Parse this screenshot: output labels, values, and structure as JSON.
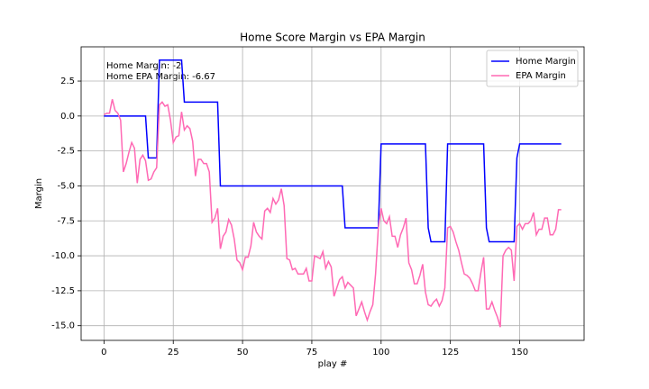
{
  "chart_data": {
    "type": "line",
    "title": "Home Score Margin vs EPA Margin",
    "x_label": "play #",
    "y_label": "Margin",
    "annotations": [
      "Home Margin: -2",
      "Home EPA Margin: -6.67"
    ],
    "xlim": [
      -8.25,
      173.25
    ],
    "xticks": [
      0,
      25,
      50,
      75,
      100,
      125,
      150
    ],
    "ylim": [
      -16.05,
      4.95
    ],
    "yticks": [
      2.5,
      {
        "value": 0,
        "label": "0.0"
      },
      -2.5,
      {
        "value": -5,
        "label": "-5.0"
      },
      -7.5,
      {
        "value": -10,
        "label": "-10.0"
      },
      -12.5,
      {
        "value": -15,
        "label": "-15.0"
      }
    ],
    "grid": true,
    "legend": "upper right",
    "series": [
      {
        "name": "Home Margin",
        "color": "#0000ff",
        "x": [
          0,
          15,
          16,
          19,
          20,
          28,
          29,
          41,
          42,
          86,
          87,
          99,
          100,
          116,
          117,
          118,
          123,
          124,
          137,
          138,
          139,
          148,
          149,
          150,
          165
        ],
        "values": [
          0,
          0,
          -3,
          -3,
          4,
          4,
          1,
          1,
          -5,
          -5,
          -8,
          -8,
          -2,
          -2,
          -8,
          -9,
          -9,
          -2,
          -2,
          -8,
          -9,
          -9,
          -3,
          -2,
          -2
        ]
      },
      {
        "name": "EPA Margin",
        "color": "#ff69b4",
        "x": [
          0,
          1,
          2,
          3,
          4,
          5,
          6,
          7,
          8,
          9,
          10,
          11,
          12,
          13,
          14,
          15,
          16,
          17,
          18,
          19,
          20,
          21,
          22,
          23,
          24,
          25,
          26,
          27,
          28,
          29,
          30,
          31,
          32,
          33,
          34,
          35,
          36,
          37,
          38,
          39,
          40,
          41,
          42,
          43,
          44,
          45,
          46,
          47,
          48,
          49,
          50,
          51,
          52,
          53,
          54,
          55,
          56,
          57,
          58,
          59,
          60,
          61,
          62,
          63,
          64,
          65,
          66,
          67,
          68,
          69,
          70,
          71,
          72,
          73,
          74,
          75,
          76,
          77,
          78,
          79,
          80,
          81,
          82,
          83,
          84,
          85,
          86,
          87,
          88,
          89,
          90,
          91,
          92,
          93,
          94,
          95,
          96,
          97,
          98,
          99,
          100,
          101,
          102,
          103,
          104,
          105,
          106,
          107,
          108,
          109,
          110,
          111,
          112,
          113,
          114,
          115,
          116,
          117,
          118,
          119,
          120,
          121,
          122,
          123,
          124,
          125,
          126,
          127,
          128,
          129,
          130,
          131,
          132,
          133,
          134,
          135,
          136,
          137,
          138,
          139,
          140,
          141,
          142,
          143,
          144,
          145,
          146,
          147,
          148,
          149,
          150,
          151,
          152,
          153,
          154,
          155,
          156,
          157,
          158,
          159,
          160,
          161,
          162,
          163,
          164,
          165
        ],
        "values": [
          0.1,
          0.2,
          0.2,
          1.2,
          0.4,
          0.2,
          -0.3,
          -4.0,
          -3.4,
          -2.6,
          -1.9,
          -2.3,
          -4.8,
          -3.1,
          -2.8,
          -3.2,
          -4.6,
          -4.5,
          -4.0,
          -3.7,
          0.8,
          1.0,
          0.7,
          0.8,
          -0.3,
          -1.9,
          -1.5,
          -1.4,
          0.3,
          -1.0,
          -0.7,
          -0.9,
          -1.8,
          -4.3,
          -3.1,
          -3.1,
          -3.4,
          -3.4,
          -4.0,
          -7.6,
          -7.3,
          -6.6,
          -9.5,
          -8.6,
          -8.3,
          -7.4,
          -7.8,
          -8.8,
          -10.3,
          -10.5,
          -11.0,
          -10.1,
          -10.1,
          -9.3,
          -7.6,
          -8.3,
          -8.6,
          -8.8,
          -6.8,
          -6.6,
          -6.9,
          -5.9,
          -6.3,
          -6.0,
          -5.2,
          -6.4,
          -10.2,
          -10.3,
          -11.0,
          -10.9,
          -11.3,
          -11.3,
          -11.3,
          -10.9,
          -11.8,
          -11.8,
          -10.0,
          -10.1,
          -10.2,
          -9.7,
          -10.9,
          -10.4,
          -10.8,
          -12.9,
          -12.3,
          -11.7,
          -11.5,
          -12.3,
          -11.9,
          -12.1,
          -12.3,
          -14.3,
          -13.8,
          -13.3,
          -14.0,
          -14.6,
          -14.0,
          -13.5,
          -11.3,
          -8.0,
          -6.6,
          -7.5,
          -7.7,
          -7.2,
          -8.6,
          -8.6,
          -9.4,
          -8.5,
          -8.0,
          -7.3,
          -10.5,
          -11.0,
          -12.0,
          -12.0,
          -11.4,
          -10.6,
          -12.6,
          -13.5,
          -13.6,
          -13.3,
          -13.1,
          -13.6,
          -13.2,
          -12.3,
          -8.0,
          -7.9,
          -8.3,
          -9.0,
          -9.6,
          -10.5,
          -11.3,
          -11.4,
          -11.6,
          -12.0,
          -12.5,
          -12.5,
          -11.2,
          -10.1,
          -13.8,
          -13.8,
          -13.3,
          -13.9,
          -14.4,
          -15.1,
          -10.0,
          -9.6,
          -9.4,
          -9.6,
          -11.8,
          -7.9,
          -7.7,
          -8.1,
          -7.7,
          -7.7,
          -7.5,
          -6.9,
          -8.5,
          -8.1,
          -8.1,
          -7.3,
          -7.3,
          -8.5,
          -8.5,
          -8.1,
          -6.7,
          -6.7
        ]
      }
    ]
  }
}
